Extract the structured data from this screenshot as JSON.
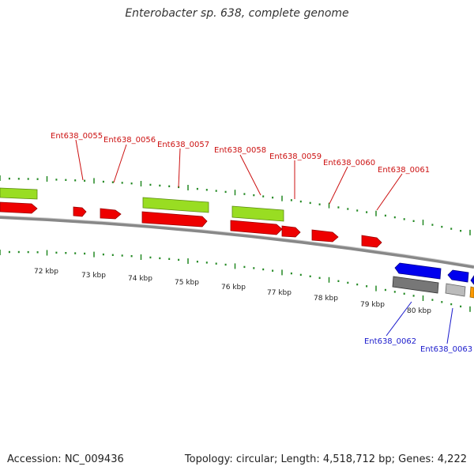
{
  "title": "Enterobacter sp. 638, complete genome",
  "footer": {
    "accession": "Accession: NC_009436",
    "summary": "Topology: circular; Length: 4,518,712 bp; Genes: 4,222"
  },
  "colors": {
    "forward_cds": "#ee0000",
    "forward_rna": "#99dd22",
    "reverse_cds": "#0000ee",
    "reverse_other": "#777777",
    "reverse_light": "#bbbbbb",
    "reverse_orange": "#ff9900",
    "tick": "#228822",
    "backbone": "#888888",
    "label_red": "#cc1111",
    "label_blue": "#1a1acc"
  },
  "scale_labels": [
    "72 kbp",
    "73 kbp",
    "74 kbp",
    "75 kbp",
    "76 kbp",
    "77 kbp",
    "78 kbp",
    "79 kbp",
    "80 kbp"
  ],
  "gene_labels_forward": [
    "Ent638_0055",
    "Ent638_0056",
    "Ent638_0057",
    "Ent638_0058",
    "Ent638_0059",
    "Ent638_0060",
    "Ent638_0061"
  ],
  "gene_labels_reverse": [
    "Ent638_0062",
    "Ent638_0063"
  ]
}
